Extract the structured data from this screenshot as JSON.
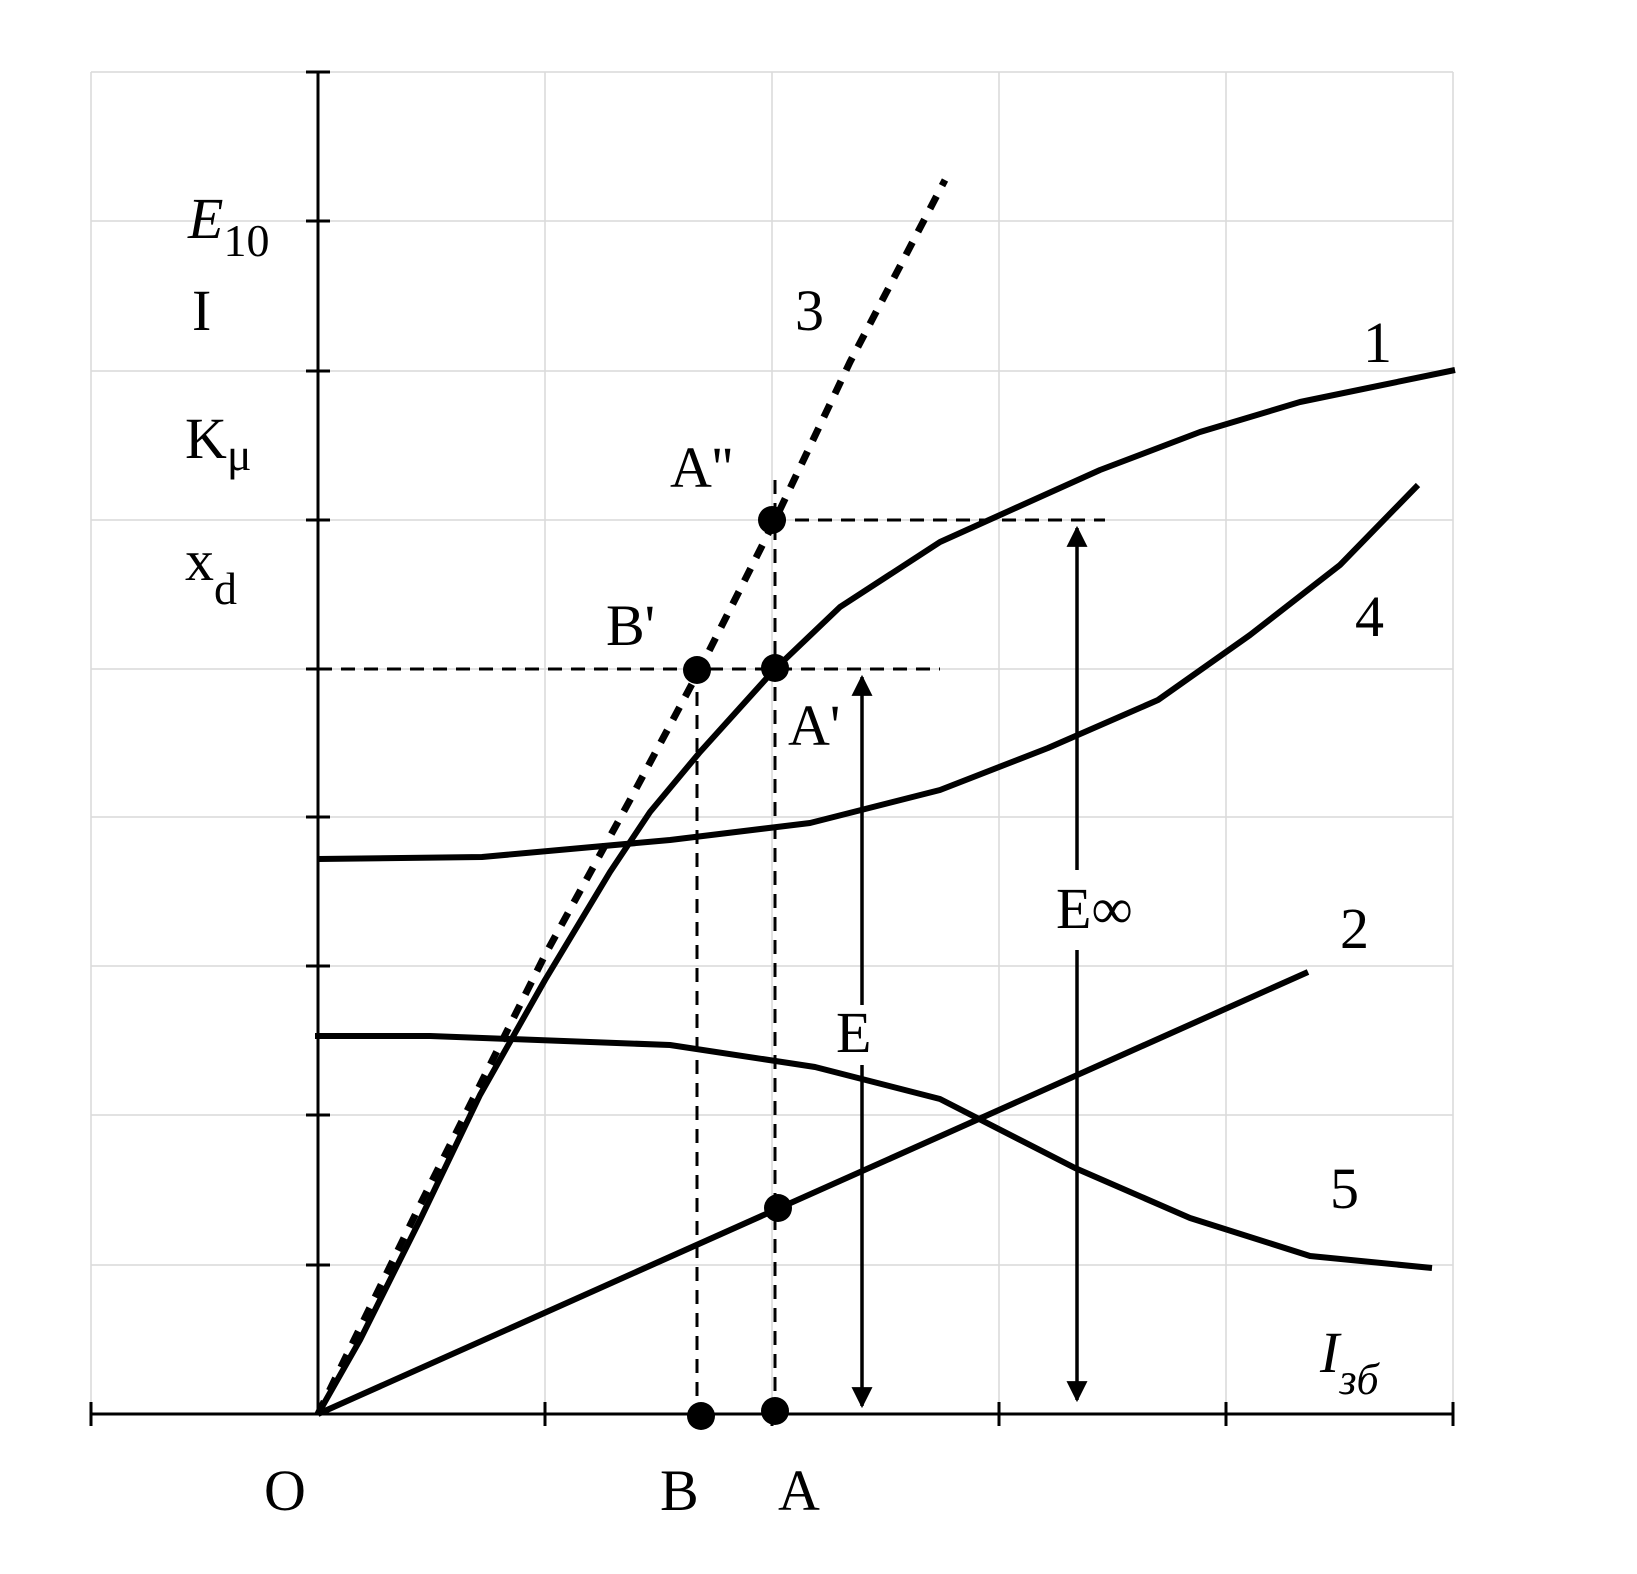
{
  "y_axis_labels": [
    {
      "main": "E",
      "sub": "10"
    },
    {
      "main": "I"
    },
    {
      "main": "K",
      "sub": "μ"
    },
    {
      "main": "x",
      "sub": "d"
    }
  ],
  "x_axis_label": {
    "main": "I",
    "sub": "зб"
  },
  "x_points": [
    "O",
    "B",
    "A"
  ],
  "curve_labels": [
    "1",
    "2",
    "3",
    "4",
    "5"
  ],
  "point_labels": [
    "A''",
    "B'",
    "A'"
  ],
  "arrow_labels": {
    "e": "E",
    "e_inf": "E∞"
  }
}
